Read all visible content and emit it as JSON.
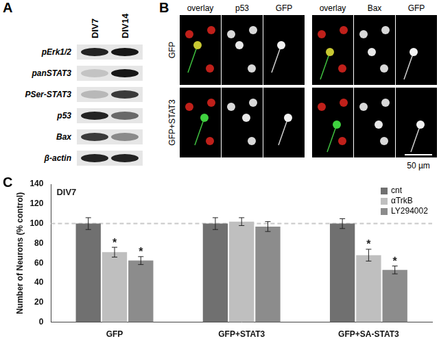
{
  "panel_labels": [
    "A",
    "B",
    "C"
  ],
  "blot": {
    "lanes": [
      "DIV7",
      "DIV14"
    ],
    "rows": [
      {
        "label": "pErk1/2",
        "band_intensity": [
          0.85,
          0.9
        ]
      },
      {
        "label": "panSTAT3",
        "band_intensity": [
          0.15,
          0.9
        ]
      },
      {
        "label": "PSer-STAT3",
        "band_intensity": [
          0.2,
          0.75
        ]
      },
      {
        "label": "p53",
        "band_intensity": [
          0.85,
          0.55
        ]
      },
      {
        "label": "Bax",
        "band_intensity": [
          0.75,
          0.4
        ]
      },
      {
        "label": "β-actin",
        "band_intensity": [
          0.85,
          0.85
        ]
      }
    ]
  },
  "micrographs": {
    "channel_groups": [
      [
        "overlay",
        "p53",
        "GFP"
      ],
      [
        "overlay",
        "Bax",
        "GFP"
      ]
    ],
    "rows": [
      "GFP",
      "GFP+STAT3"
    ],
    "scale_bar": "50 µm"
  },
  "chart_data": {
    "type": "bar",
    "annotations": [
      "DIV7"
    ],
    "y_label": "Number of Neurons (% control)",
    "categories": [
      "GFP",
      "GFP+STAT3",
      "GFP+SA-STAT3"
    ],
    "series": [
      {
        "name": "cnt",
        "color": "#707070",
        "values": [
          100,
          100,
          100
        ],
        "errors": [
          6,
          6,
          5
        ],
        "significant": [
          false,
          false,
          false
        ]
      },
      {
        "name": "αTrkB",
        "color": "#bfbfbf",
        "values": [
          71,
          102,
          68
        ],
        "errors": [
          5,
          4,
          6
        ],
        "significant": [
          true,
          false,
          true
        ]
      },
      {
        "name": "LY294002",
        "color": "#8c8c8c",
        "values": [
          62.5,
          97,
          53
        ],
        "errors": [
          4,
          5,
          4
        ],
        "significant": [
          true,
          false,
          true
        ]
      }
    ],
    "significance_mark": "*",
    "reference_line": 100,
    "ylim": [
      0,
      140
    ],
    "yticks": [
      0,
      20,
      40,
      60,
      80,
      100,
      120,
      140
    ],
    "grid": false,
    "legend": "upper right"
  }
}
